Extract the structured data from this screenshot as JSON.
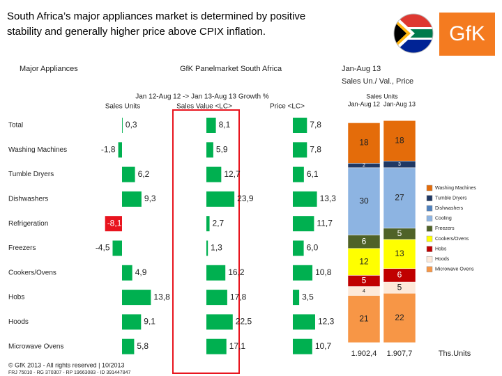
{
  "title": [
    "South Africa’s major appliances market is determined by positive",
    "stability and generally higher price above CPIX inflation."
  ],
  "logo": "GfK",
  "header": {
    "left": "Major Appliances",
    "center": "GfK Panelmarket South Africa",
    "right": "Jan-Aug 13",
    "right_sub": "Sales Un./ Val., Price",
    "growth": "Jan 12-Aug 12 -> Jan 13-Aug 13 Growth %"
  },
  "footer": [
    "© GfK 2013 - All rights reserved | 10/2013",
    "FRJ 75010 - RG 370307 - RP 19663083 - ID 391447847"
  ],
  "chart_data": [
    {
      "type": "hbar",
      "title": "Sales Units",
      "categories": [
        "Total",
        "Washing Machines",
        "Tumble Dryers",
        "Dishwashers",
        "Refrigeration",
        "Freezers",
        "Cookers/Ovens",
        "Hobs",
        "Hoods",
        "Microwave Ovens"
      ],
      "values": [
        0.3,
        -1.8,
        6.2,
        9.3,
        -8.1,
        -4.5,
        4.9,
        13.8,
        9.1,
        5.8
      ],
      "value_labels": [
        "0,3",
        "-1,8",
        "6,2",
        "9,3",
        "-8,1",
        "-4,5",
        "4,9",
        "13,8",
        "9,1",
        "5,8"
      ],
      "colors": [
        "#00b050",
        "#00b050",
        "#00b050",
        "#00b050",
        "#e8141e",
        "#00b050",
        "#00b050",
        "#00b050",
        "#00b050",
        "#00b050"
      ],
      "xlim": [
        -10,
        15
      ]
    },
    {
      "type": "hbar",
      "title": "Sales Value <LC>",
      "values": [
        8.1,
        5.9,
        12.7,
        23.9,
        2.7,
        1.3,
        16.2,
        17.8,
        22.5,
        17.1
      ],
      "value_labels": [
        "8,1",
        "5,9",
        "12,7",
        "23,9",
        "2,7",
        "1,3",
        "16,2",
        "17,8",
        "22,5",
        "17,1"
      ],
      "color": "#00b050",
      "xlim": [
        0,
        25
      ]
    },
    {
      "type": "hbar",
      "title": "Price <LC>",
      "values": [
        7.8,
        7.8,
        6.1,
        13.3,
        11.7,
        6.0,
        10.8,
        3.5,
        12.3,
        10.7
      ],
      "value_labels": [
        "7,8",
        "7,8",
        "6,1",
        "13,3",
        "11,7",
        "6,0",
        "10,8",
        "3,5",
        "12,3",
        "10,7"
      ],
      "color": "#00b050",
      "xlim": [
        0,
        15
      ]
    },
    {
      "type": "stacked",
      "title": "Sales Units",
      "categories": [
        "Jan-Aug 12",
        "Jan-Aug 13"
      ],
      "ylim": [
        0,
        100
      ],
      "series": [
        {
          "name": "Washing Machines",
          "color": "#e46c0a",
          "values": [
            18,
            18
          ]
        },
        {
          "name": "Tumble Dryers",
          "color": "#1f3864",
          "values": [
            2,
            3
          ]
        },
        {
          "name": "Dishwashers",
          "color": "#4f81bd",
          "values": [
            null,
            null
          ]
        },
        {
          "name": "Cooling",
          "color": "#8db4e2",
          "values": [
            30,
            27
          ]
        },
        {
          "name": "Freezers",
          "color": "#4f6228",
          "values": [
            6,
            5
          ]
        },
        {
          "name": "Cookers/Ovens",
          "color": "#ffff00",
          "values": [
            12,
            13
          ]
        },
        {
          "name": "Hobs",
          "color": "#c00000",
          "values": [
            5,
            6
          ]
        },
        {
          "name": "Hoods",
          "color": "#fde9d9",
          "values": [
            4,
            5
          ]
        },
        {
          "name": "Microwave Ovens",
          "color": "#f79646",
          "values": [
            21,
            22
          ]
        }
      ],
      "totals": [
        "1.902,4",
        "1.907,7"
      ],
      "totals_unit": "Ths.Units"
    }
  ]
}
